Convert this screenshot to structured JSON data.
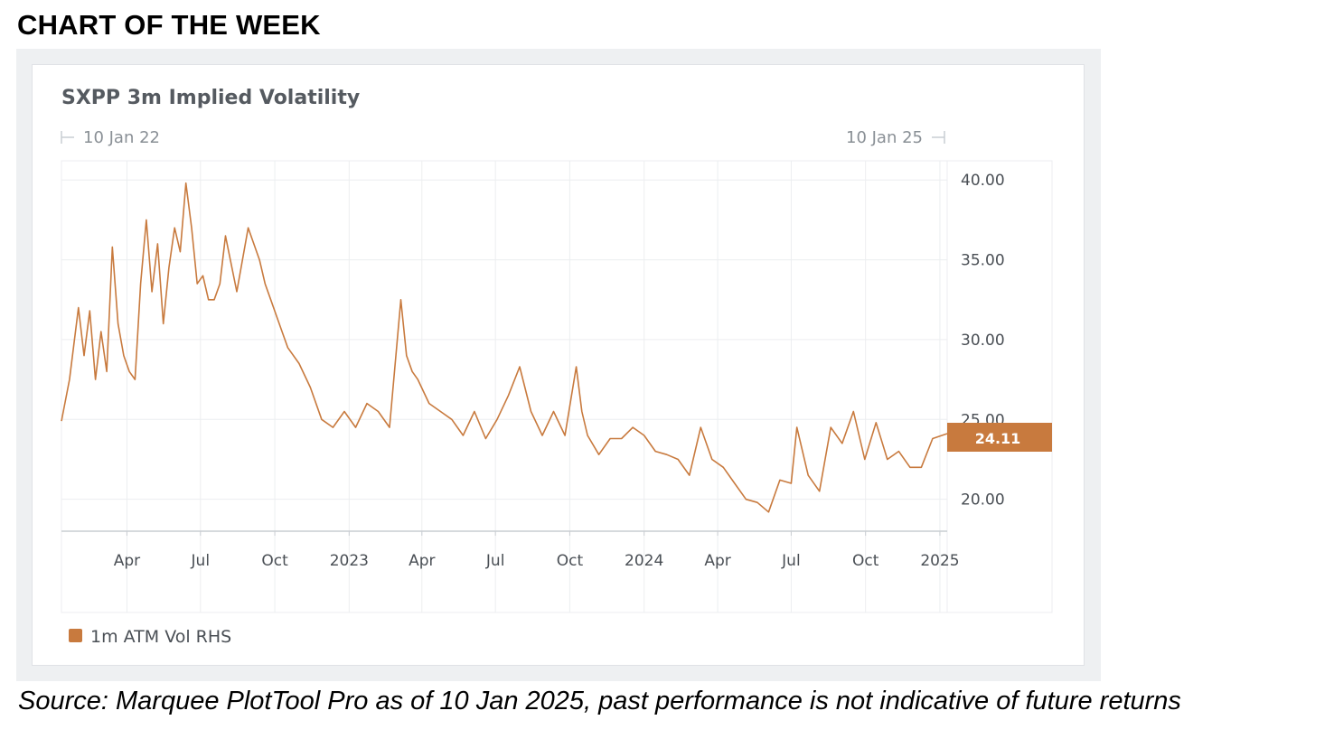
{
  "heading": "CHART OF THE WEEK",
  "source": "Source: Marquee PlotTool Pro as of 10 Jan 2025, past performance is not indicative of future returns",
  "colors": {
    "series": "#c87a3e",
    "grid": "#eceef0",
    "axis": "#c9cdd2"
  },
  "chart_data": {
    "type": "line",
    "title": "SXPP 3m Implied Volatility",
    "range_start_label": "10 Jan 22",
    "range_end_label": "10 Jan 25",
    "x_range": [
      "2022-01-10",
      "2025-01-10"
    ],
    "ylim": [
      18,
      41.2
    ],
    "y_axis_side": "right",
    "y_ticks": [
      "40.00",
      "35.00",
      "30.00",
      "25.00",
      "20.00"
    ],
    "x_ticks": [
      "Apr",
      "Jul",
      "Oct",
      "2023",
      "Apr",
      "Jul",
      "Oct",
      "2024",
      "Apr",
      "Jul",
      "Oct",
      "2025"
    ],
    "legend_position": "bottom-left",
    "last_value_label": "24.11",
    "grid": true,
    "series": [
      {
        "name": "1m ATM Vol RHS",
        "x": [
          "2022-01-10",
          "2022-01-20",
          "2022-01-31",
          "2022-02-07",
          "2022-02-14",
          "2022-02-21",
          "2022-02-28",
          "2022-03-07",
          "2022-03-14",
          "2022-03-21",
          "2022-03-28",
          "2022-04-04",
          "2022-04-11",
          "2022-04-18",
          "2022-04-25",
          "2022-05-02",
          "2022-05-09",
          "2022-05-16",
          "2022-05-23",
          "2022-05-30",
          "2022-06-06",
          "2022-06-13",
          "2022-06-20",
          "2022-06-27",
          "2022-07-04",
          "2022-07-11",
          "2022-07-18",
          "2022-07-25",
          "2022-08-01",
          "2022-08-15",
          "2022-08-29",
          "2022-09-12",
          "2022-09-19",
          "2022-09-26",
          "2022-10-03",
          "2022-10-10",
          "2022-10-17",
          "2022-10-31",
          "2022-11-14",
          "2022-11-28",
          "2022-12-12",
          "2022-12-26",
          "2023-01-09",
          "2023-01-23",
          "2023-02-06",
          "2023-02-20",
          "2023-03-06",
          "2023-03-13",
          "2023-03-20",
          "2023-03-27",
          "2023-04-10",
          "2023-04-24",
          "2023-05-08",
          "2023-05-22",
          "2023-06-05",
          "2023-06-19",
          "2023-07-03",
          "2023-07-17",
          "2023-07-31",
          "2023-08-14",
          "2023-08-28",
          "2023-09-11",
          "2023-09-25",
          "2023-10-09",
          "2023-10-16",
          "2023-10-23",
          "2023-11-06",
          "2023-11-20",
          "2023-12-04",
          "2023-12-18",
          "2024-01-01",
          "2024-01-15",
          "2024-01-29",
          "2024-02-12",
          "2024-02-26",
          "2024-03-11",
          "2024-03-25",
          "2024-04-08",
          "2024-04-22",
          "2024-05-06",
          "2024-05-20",
          "2024-06-03",
          "2024-06-17",
          "2024-07-01",
          "2024-07-08",
          "2024-07-22",
          "2024-08-05",
          "2024-08-19",
          "2024-09-02",
          "2024-09-16",
          "2024-09-30",
          "2024-10-14",
          "2024-10-28",
          "2024-11-11",
          "2024-11-25",
          "2024-12-09",
          "2024-12-23",
          "2025-01-10"
        ],
        "values": [
          24.9,
          27.5,
          32.0,
          29.0,
          31.8,
          27.5,
          30.5,
          28.0,
          35.8,
          31.0,
          29.0,
          28.0,
          27.5,
          33.5,
          37.5,
          33.0,
          36.0,
          31.0,
          34.5,
          37.0,
          35.5,
          39.8,
          37.0,
          33.5,
          34.0,
          32.5,
          32.5,
          33.5,
          36.5,
          33.0,
          37.0,
          35.0,
          33.5,
          32.5,
          31.5,
          30.5,
          29.5,
          28.5,
          27.0,
          25.0,
          24.5,
          25.5,
          24.5,
          26.0,
          25.5,
          24.5,
          32.5,
          29.0,
          28.0,
          27.5,
          26.0,
          25.5,
          25.0,
          24.0,
          25.5,
          23.8,
          25.0,
          26.5,
          28.3,
          25.5,
          24.0,
          25.5,
          24.0,
          28.3,
          25.5,
          24.0,
          22.8,
          23.8,
          23.8,
          24.5,
          24.0,
          23.0,
          22.8,
          22.5,
          21.5,
          24.5,
          22.5,
          22.0,
          21.0,
          20.0,
          19.8,
          19.2,
          21.2,
          21.0,
          24.5,
          21.5,
          20.5,
          24.5,
          23.5,
          25.5,
          22.5,
          24.8,
          22.5,
          23.0,
          22.0,
          22.0,
          23.8,
          24.11
        ]
      }
    ]
  }
}
